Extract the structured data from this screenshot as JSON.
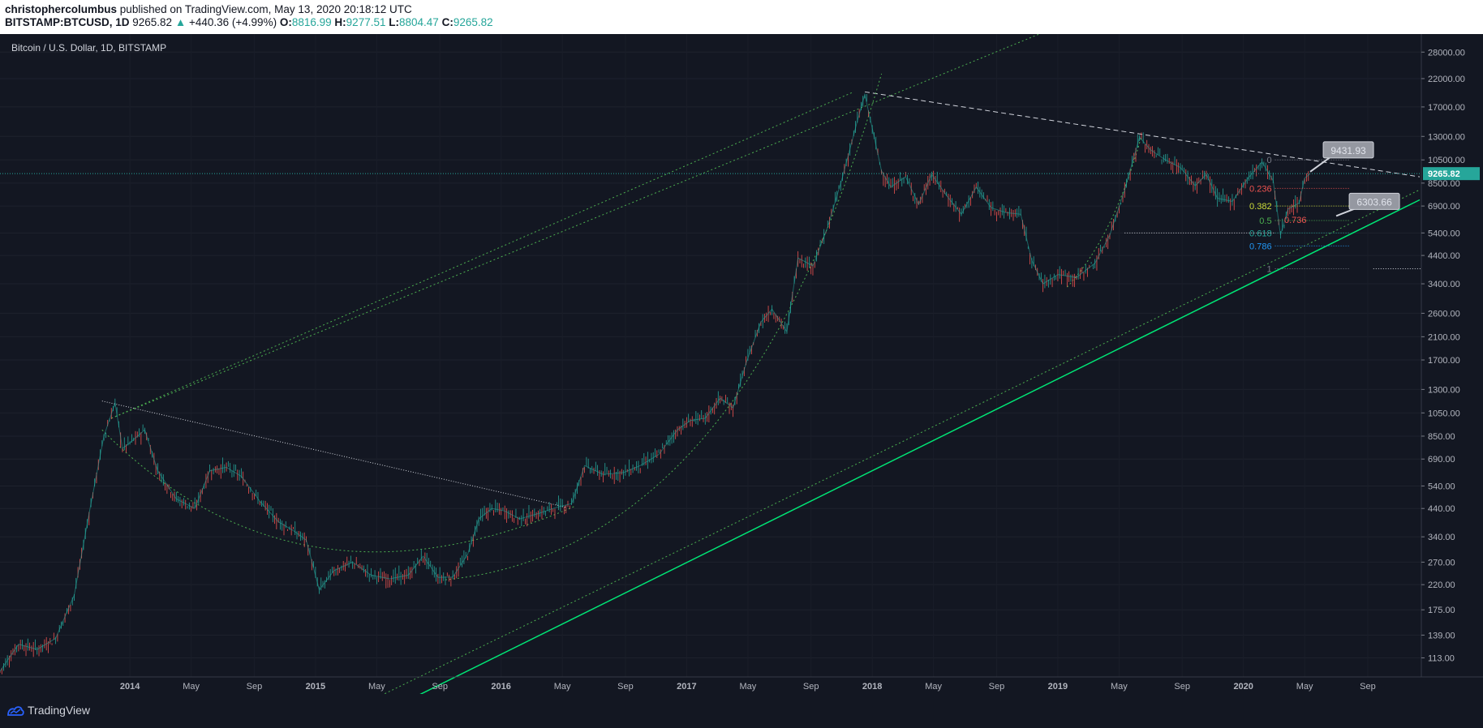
{
  "header": {
    "author": "christophercolumbus",
    "published": "published on TradingView.com, May 13, 2020 20:18:12 UTC",
    "symbol": "BITSTAMP:BTCUSD, 1D",
    "price": "9265.82",
    "change_arrow": "▲",
    "change": "+440.36 (+4.99%)",
    "o_label": "O:",
    "o_value": "8816.99",
    "h_label": "H:",
    "h_value": "9277.51",
    "l_label": "L:",
    "l_value": "8804.47",
    "c_label": "C:",
    "c_value": "9265.82"
  },
  "chart_title": "Bitcoin / U.S. Dollar, 1D, BITSTAMP",
  "footer": {
    "brand": "TradingView"
  },
  "colors": {
    "background": "#131722",
    "up": "#26a69a",
    "down": "#ef5350",
    "trend_bright": "#00e676",
    "trend_dotted": "#4caf50",
    "price_line": "#26a69a",
    "axis_text": "#b2b5be"
  },
  "chart_data": {
    "type": "candlestick",
    "title": "Bitcoin / U.S. Dollar, 1D, BITSTAMP",
    "y_scale": "log",
    "ylim": [
      95,
      33000
    ],
    "y_ticks": [
      "28000.00",
      "22000.00",
      "17000.00",
      "13000.00",
      "10500.00",
      "8500.00",
      "6900.00",
      "5400.00",
      "4400.00",
      "3400.00",
      "2600.00",
      "2100.00",
      "1700.00",
      "1300.00",
      "1050.00",
      "850.00",
      "690.00",
      "540.00",
      "440.00",
      "340.00",
      "270.00",
      "220.00",
      "175.00",
      "139.00",
      "113.00"
    ],
    "x_ticks": [
      "2014",
      "May",
      "Sep",
      "2015",
      "May",
      "Sep",
      "2016",
      "May",
      "Sep",
      "2017",
      "May",
      "Sep",
      "2018",
      "May",
      "Sep",
      "2019",
      "May",
      "Sep",
      "2020",
      "May",
      "Sep"
    ],
    "last_price": "9265.82",
    "callouts": [
      "9431.93",
      "6303.66"
    ],
    "fib_levels": [
      {
        "label": "0",
        "color": "#787b86"
      },
      {
        "label": "0.236",
        "color": "#ef5350"
      },
      {
        "label": "0.382",
        "color": "#cddc39"
      },
      {
        "label": "0.5",
        "color": "#4caf50"
      },
      {
        "label": "0.618",
        "color": "#26a69a"
      },
      {
        "label": "0.786",
        "color": "#2196f3"
      },
      {
        "label": "1",
        "color": "#787b86"
      }
    ],
    "fib_extra_label": "0.736",
    "price_path": [
      [
        2013.3,
        100
      ],
      [
        2013.4,
        128
      ],
      [
        2013.5,
        122
      ],
      [
        2013.6,
        135
      ],
      [
        2013.7,
        200
      ],
      [
        2013.78,
        420
      ],
      [
        2013.86,
        850
      ],
      [
        2013.92,
        1150
      ],
      [
        2013.96,
        760
      ],
      [
        2014.0,
        800
      ],
      [
        2014.08,
        900
      ],
      [
        2014.15,
        620
      ],
      [
        2014.25,
        480
      ],
      [
        2014.35,
        440
      ],
      [
        2014.43,
        620
      ],
      [
        2014.52,
        640
      ],
      [
        2014.6,
        590
      ],
      [
        2014.7,
        470
      ],
      [
        2014.8,
        390
      ],
      [
        2014.88,
        360
      ],
      [
        2014.95,
        330
      ],
      [
        2015.02,
        210
      ],
      [
        2015.1,
        250
      ],
      [
        2015.2,
        270
      ],
      [
        2015.3,
        240
      ],
      [
        2015.4,
        232
      ],
      [
        2015.5,
        240
      ],
      [
        2015.58,
        285
      ],
      [
        2015.66,
        235
      ],
      [
        2015.74,
        236
      ],
      [
        2015.82,
        290
      ],
      [
        2015.88,
        400
      ],
      [
        2015.95,
        440
      ],
      [
        2016.02,
        430
      ],
      [
        2016.1,
        400
      ],
      [
        2016.2,
        420
      ],
      [
        2016.3,
        445
      ],
      [
        2016.38,
        460
      ],
      [
        2016.45,
        650
      ],
      [
        2016.55,
        600
      ],
      [
        2016.66,
        610
      ],
      [
        2016.75,
        650
      ],
      [
        2016.85,
        720
      ],
      [
        2016.95,
        900
      ],
      [
        2017.02,
        980
      ],
      [
        2017.1,
        1000
      ],
      [
        2017.18,
        1200
      ],
      [
        2017.25,
        1100
      ],
      [
        2017.32,
        1650
      ],
      [
        2017.4,
        2400
      ],
      [
        2017.46,
        2700
      ],
      [
        2017.54,
        2200
      ],
      [
        2017.6,
        4300
      ],
      [
        2017.68,
        4000
      ],
      [
        2017.76,
        5700
      ],
      [
        2017.84,
        9000
      ],
      [
        2017.92,
        15000
      ],
      [
        2017.96,
        19000
      ],
      [
        2018.0,
        14000
      ],
      [
        2018.05,
        9500
      ],
      [
        2018.1,
        8200
      ],
      [
        2018.18,
        9000
      ],
      [
        2018.25,
        7000
      ],
      [
        2018.32,
        9200
      ],
      [
        2018.4,
        7600
      ],
      [
        2018.48,
        6400
      ],
      [
        2018.56,
        8200
      ],
      [
        2018.64,
        6800
      ],
      [
        2018.72,
        6500
      ],
      [
        2018.8,
        6400
      ],
      [
        2018.86,
        4200
      ],
      [
        2018.92,
        3400
      ],
      [
        2019.0,
        3700
      ],
      [
        2019.1,
        3600
      ],
      [
        2019.2,
        4100
      ],
      [
        2019.28,
        5300
      ],
      [
        2019.36,
        8000
      ],
      [
        2019.44,
        12900
      ],
      [
        2019.5,
        11500
      ],
      [
        2019.58,
        10500
      ],
      [
        2019.66,
        9800
      ],
      [
        2019.74,
        8300
      ],
      [
        2019.8,
        9200
      ],
      [
        2019.86,
        7400
      ],
      [
        2019.94,
        7200
      ],
      [
        2020.02,
        8800
      ],
      [
        2020.1,
        10300
      ],
      [
        2020.16,
        8700
      ],
      [
        2020.2,
        5300
      ],
      [
        2020.24,
        6700
      ],
      [
        2020.3,
        7100
      ],
      [
        2020.33,
        8900
      ],
      [
        2020.36,
        9265
      ]
    ],
    "trendlines": [
      {
        "style": "solid-bright",
        "from": [
          2015.3,
          65
        ],
        "to": [
          2020.95,
          7300
        ]
      },
      {
        "style": "dotted",
        "from": [
          2015.0,
          60
        ],
        "to": [
          2020.95,
          8000
        ]
      },
      {
        "style": "dotted",
        "from": [
          2013.9,
          1000
        ],
        "to": [
          2017.9,
          19500
        ]
      },
      {
        "style": "dotted-upper",
        "from": [
          2013.9,
          1000
        ],
        "to": [
          2018.9,
          33000
        ]
      },
      {
        "style": "dashed-white",
        "from": [
          2017.96,
          19500
        ],
        "to": [
          2020.95,
          9000
        ]
      },
      {
        "style": "dotted-white",
        "from": [
          2013.85,
          1170
        ],
        "to": [
          2016.35,
          445
        ]
      }
    ]
  }
}
